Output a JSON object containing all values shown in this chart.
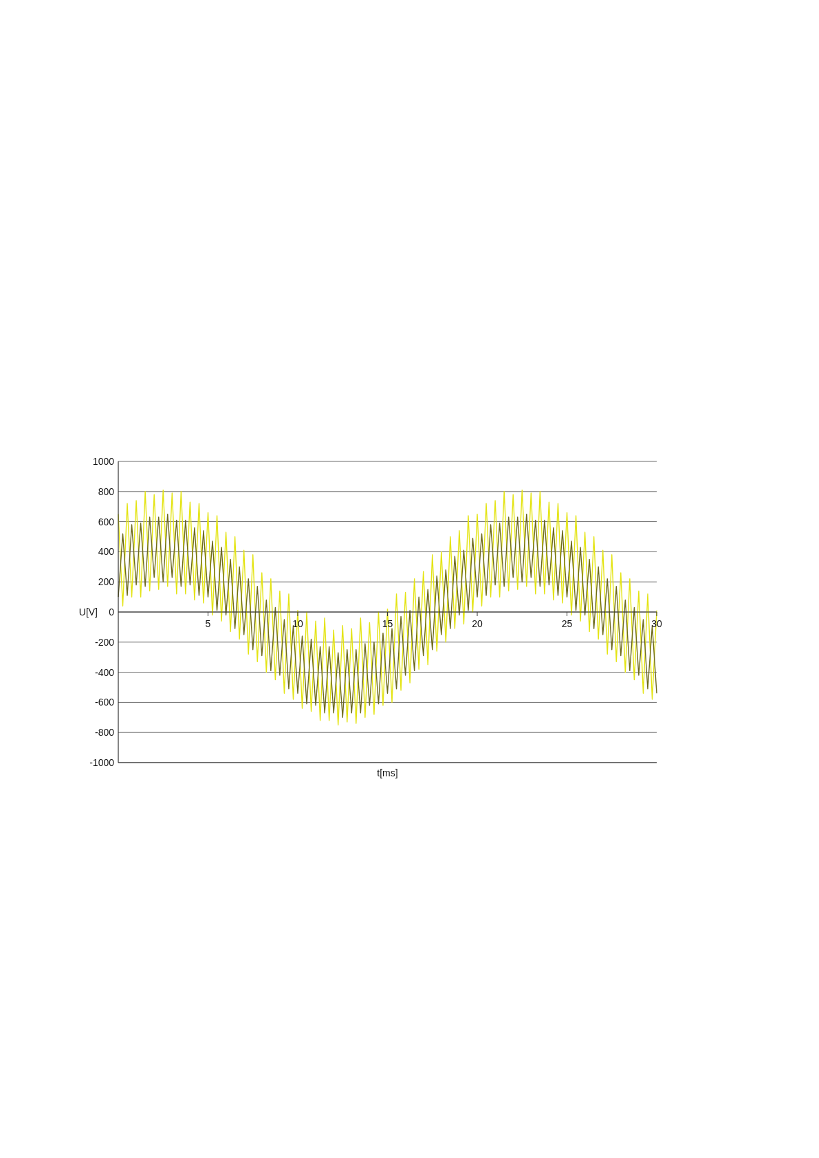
{
  "chart_data": {
    "type": "line",
    "xlabel": "t[ms]",
    "ylabel": "U[V]",
    "x": [
      0,
      0.25,
      0.5,
      0.75,
      1,
      1.25,
      1.5,
      1.75,
      2,
      2.25,
      2.5,
      2.75,
      3,
      3.25,
      3.5,
      3.75,
      4,
      4.25,
      4.5,
      4.75,
      5,
      5.25,
      5.5,
      5.75,
      6,
      6.25,
      6.5,
      6.75,
      7,
      7.25,
      7.5,
      7.75,
      8,
      8.25,
      8.5,
      8.75,
      9,
      9.25,
      9.5,
      9.75,
      10,
      10.25,
      10.5,
      10.75,
      11,
      11.25,
      11.5,
      11.75,
      12,
      12.25,
      12.5,
      12.75,
      13,
      13.25,
      13.5,
      13.75,
      14,
      14.25,
      14.5,
      14.75,
      15,
      15.25,
      15.5,
      15.75,
      16,
      16.25,
      16.5,
      16.75,
      17,
      17.25,
      17.5,
      17.75,
      18,
      18.25,
      18.5,
      18.75,
      19,
      19.25,
      19.5,
      19.75,
      20,
      20.25,
      20.5,
      20.75,
      21,
      21.25,
      21.5,
      21.75,
      22,
      22.25,
      22.5,
      22.75,
      23,
      23.25,
      23.5,
      23.75,
      24,
      24.25,
      24.5,
      24.75,
      25,
      25.25,
      25.5,
      25.75,
      26,
      26.25,
      26.5,
      26.75,
      27,
      27.25,
      27.5,
      27.75,
      28,
      28.25,
      28.5,
      28.75,
      29,
      29.25,
      29.5,
      29.75,
      30
    ],
    "series": [
      {
        "color": "#e4e414",
        "values": [
          650,
          40,
          720,
          100,
          740,
          100,
          800,
          140,
          780,
          150,
          810,
          170,
          790,
          120,
          800,
          120,
          730,
          80,
          720,
          60,
          660,
          -20,
          640,
          -60,
          530,
          -130,
          500,
          -180,
          410,
          -280,
          380,
          -330,
          260,
          -400,
          220,
          -450,
          140,
          -540,
          120,
          -580,
          10,
          -640,
          0,
          -660,
          -60,
          -720,
          -40,
          -720,
          -120,
          -750,
          -90,
          -730,
          -110,
          -740,
          -40,
          -700,
          -70,
          -680,
          0,
          -620,
          20,
          -600,
          120,
          -520,
          130,
          -470,
          220,
          -380,
          270,
          -350,
          380,
          -260,
          400,
          -200,
          500,
          -110,
          540,
          -80,
          640,
          0,
          650,
          40,
          720,
          100,
          740,
          100,
          800,
          140,
          780,
          150,
          810,
          170,
          790,
          120,
          800,
          120,
          730,
          80,
          720,
          60,
          660,
          -20,
          640,
          -60,
          530,
          -130,
          500,
          -180,
          410,
          -280,
          380,
          -330,
          260,
          -400,
          220,
          -450,
          140,
          -540,
          120,
          -580,
          10
        ]
      },
      {
        "color": "#6e6b1e",
        "values": [
          100,
          520,
          110,
          580,
          180,
          590,
          170,
          630,
          230,
          630,
          200,
          650,
          230,
          610,
          170,
          610,
          180,
          560,
          110,
          540,
          100,
          470,
          10,
          430,
          -20,
          350,
          -110,
          300,
          -150,
          220,
          -250,
          170,
          -290,
          80,
          -390,
          30,
          -420,
          -50,
          -510,
          -90,
          -540,
          -160,
          -610,
          -180,
          -620,
          -230,
          -670,
          -230,
          -670,
          -270,
          -700,
          -250,
          -670,
          -250,
          -670,
          -210,
          -620,
          -200,
          -610,
          -140,
          -540,
          -110,
          -510,
          -30,
          -420,
          10,
          -390,
          100,
          -290,
          150,
          -250,
          240,
          -150,
          280,
          -110,
          370,
          -20,
          410,
          10,
          490,
          100,
          520,
          110,
          580,
          180,
          590,
          170,
          630,
          230,
          630,
          200,
          650,
          230,
          610,
          170,
          610,
          180,
          560,
          110,
          540,
          100,
          470,
          10,
          430,
          -20,
          350,
          -110,
          300,
          -150,
          220,
          -250,
          170,
          -290,
          80,
          -390,
          30,
          -420,
          -50,
          -510,
          -90,
          -540
        ]
      }
    ],
    "xlim": [
      0,
      30
    ],
    "xticks": [
      5,
      10,
      15,
      20,
      25,
      30
    ],
    "ylim": [
      -1000,
      1000
    ],
    "yticks": [
      -1000,
      -800,
      -600,
      -400,
      -200,
      0,
      200,
      400,
      600,
      800,
      1000
    ],
    "grid": "y",
    "line_style": "solid"
  }
}
